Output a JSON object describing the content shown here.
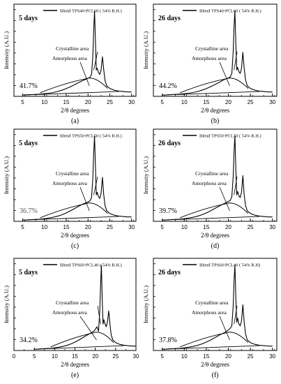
{
  "chart_data": [
    {
      "type": "line",
      "panel_label": "(a)",
      "legend": "Blend TPS40-PCL60 ( 54% R.H.)",
      "days": "5 days",
      "crystallinity": "41.7%",
      "ylabel": "Intensity (A.U.)",
      "xlabel": "2/θ degrees",
      "xlim": [
        3,
        31
      ],
      "xticks": [
        "5",
        "10",
        "15",
        "20",
        "25",
        "30"
      ],
      "legend_position": "top",
      "grid": false,
      "annotations": [
        "Crystalline area",
        "Amorphous area"
      ],
      "series": [
        {
          "x": [
            5,
            6,
            7,
            8,
            9,
            10,
            11,
            12,
            13,
            14,
            15,
            16,
            17,
            18,
            19,
            19.8,
            20.4,
            20.8,
            21.1,
            21.3,
            21.5,
            21.7,
            21.9,
            22.1,
            22.4,
            22.7,
            23,
            23.3,
            23.6,
            23.9,
            24.3,
            25,
            26,
            27,
            28,
            29,
            30
          ],
          "y": [
            0.015,
            0.018,
            0.02,
            0.022,
            0.025,
            0.03,
            0.036,
            0.044,
            0.055,
            0.07,
            0.088,
            0.11,
            0.135,
            0.16,
            0.185,
            0.2,
            0.215,
            0.25,
            0.45,
            0.75,
            0.97,
            0.62,
            0.3,
            0.32,
            0.27,
            0.25,
            0.3,
            0.45,
            0.3,
            0.18,
            0.12,
            0.09,
            0.07,
            0.06,
            0.055,
            0.05,
            0.05
          ]
        }
      ]
    },
    {
      "type": "line",
      "panel_label": "(b)",
      "legend": "Blend TPS40-PCL60 ( 54% R.H.)",
      "days": "26 days",
      "crystallinity": "44.2%",
      "ylabel": "Intensity (A.U.)",
      "xlabel": "2/θ degrees",
      "xlim": [
        3,
        31
      ],
      "xticks": [
        "5",
        "10",
        "15",
        "20",
        "25",
        "30"
      ],
      "legend_position": "top",
      "grid": false,
      "annotations": [
        "Crystalline area",
        "Amorphous area"
      ],
      "series": [
        {
          "x": [
            5,
            6,
            7,
            8,
            9,
            10,
            11,
            12,
            13,
            14,
            15,
            16,
            17,
            18,
            19,
            19.8,
            20.4,
            20.8,
            21.1,
            21.3,
            21.5,
            21.7,
            21.9,
            22.1,
            22.4,
            22.7,
            23,
            23.3,
            23.6,
            23.9,
            24.3,
            25,
            26,
            27,
            28,
            29,
            30
          ],
          "y": [
            0.015,
            0.017,
            0.02,
            0.022,
            0.025,
            0.03,
            0.036,
            0.044,
            0.055,
            0.07,
            0.088,
            0.11,
            0.135,
            0.16,
            0.19,
            0.205,
            0.22,
            0.26,
            0.5,
            0.8,
            0.97,
            0.6,
            0.3,
            0.33,
            0.28,
            0.26,
            0.32,
            0.5,
            0.32,
            0.19,
            0.12,
            0.09,
            0.07,
            0.06,
            0.055,
            0.05,
            0.05
          ]
        }
      ]
    },
    {
      "type": "line",
      "panel_label": "(c)",
      "legend": "Blend TPS50-PCL50 ( 54% R.H.)",
      "days": "5 days",
      "crystallinity": "36.7%",
      "ylabel": "Intensity (A.U.)",
      "xlabel": "2/θ degrees",
      "xlim": [
        3,
        31
      ],
      "xticks": [
        "5",
        "10",
        "15",
        "20",
        "25",
        "30"
      ],
      "legend_position": "top",
      "grid": false,
      "annotations": [
        "Crystalline area",
        "Amorphous area"
      ],
      "series": [
        {
          "x": [
            5,
            6,
            7,
            8,
            9,
            10,
            11,
            12,
            13,
            14,
            15,
            16,
            17,
            18,
            19,
            19.8,
            20.4,
            20.8,
            21.1,
            21.3,
            21.5,
            21.7,
            21.9,
            22.1,
            22.4,
            22.7,
            23,
            23.3,
            23.6,
            23.9,
            24.3,
            25,
            26,
            27,
            28,
            29,
            30
          ],
          "y": [
            0.015,
            0.017,
            0.02,
            0.022,
            0.025,
            0.03,
            0.037,
            0.046,
            0.058,
            0.075,
            0.095,
            0.12,
            0.148,
            0.175,
            0.2,
            0.215,
            0.23,
            0.27,
            0.48,
            0.78,
            0.97,
            0.62,
            0.3,
            0.33,
            0.28,
            0.26,
            0.32,
            0.5,
            0.3,
            0.18,
            0.12,
            0.09,
            0.07,
            0.06,
            0.055,
            0.05,
            0.05
          ]
        }
      ]
    },
    {
      "type": "line",
      "panel_label": "(d)",
      "legend": "Blend TPS50-PCL50 ( 54% R.H.)",
      "days": "26 days",
      "crystallinity": "39.7%",
      "ylabel": "Intensity (A.U.)",
      "xlabel": "2/θ degrees",
      "xlim": [
        3,
        31
      ],
      "xticks": [
        "5",
        "10",
        "15",
        "20",
        "25",
        "30"
      ],
      "legend_position": "top",
      "grid": false,
      "annotations": [
        "Crystalline area",
        "Amorphous area"
      ],
      "series": [
        {
          "x": [
            5,
            6,
            7,
            8,
            9,
            10,
            11,
            12,
            13,
            14,
            15,
            16,
            17,
            18,
            19,
            19.8,
            20.4,
            20.8,
            21.1,
            21.3,
            21.5,
            21.7,
            21.9,
            22.1,
            22.4,
            22.7,
            23,
            23.3,
            23.6,
            23.9,
            24.3,
            25,
            26,
            27,
            28,
            29,
            30
          ],
          "y": [
            0.015,
            0.017,
            0.02,
            0.022,
            0.025,
            0.03,
            0.037,
            0.046,
            0.058,
            0.075,
            0.095,
            0.12,
            0.148,
            0.175,
            0.2,
            0.22,
            0.235,
            0.28,
            0.5,
            0.8,
            0.97,
            0.6,
            0.3,
            0.34,
            0.29,
            0.27,
            0.33,
            0.52,
            0.3,
            0.18,
            0.12,
            0.09,
            0.07,
            0.06,
            0.055,
            0.05,
            0.05
          ]
        }
      ]
    },
    {
      "type": "line",
      "panel_label": "(e)",
      "legend": "Blend TPS60-PCL40 ( 54% R.H.)",
      "days": "5 days",
      "crystallinity": "34.2%",
      "ylabel": "Intensity (A.U.)",
      "xlabel": "2/θ degrees",
      "xlim": [
        0,
        30
      ],
      "xticks": [
        "0",
        "5",
        "10",
        "15",
        "20",
        "25",
        "30"
      ],
      "legend_position": "top",
      "grid": false,
      "annotations": [
        "Crystalline area",
        "Amorphous area"
      ],
      "series": [
        {
          "x": [
            5,
            6,
            7,
            8,
            9,
            10,
            11,
            12,
            13,
            14,
            15,
            16,
            17,
            18,
            19,
            19.8,
            20.4,
            20.8,
            21.1,
            21.3,
            21.5,
            21.7,
            21.9,
            22.1,
            22.4,
            22.7,
            23,
            23.3,
            23.6,
            23.9,
            24.3,
            25,
            26,
            27,
            28,
            29,
            30
          ],
          "y": [
            0.015,
            0.017,
            0.02,
            0.022,
            0.025,
            0.03,
            0.037,
            0.046,
            0.058,
            0.075,
            0.095,
            0.12,
            0.148,
            0.175,
            0.2,
            0.225,
            0.27,
            0.22,
            0.45,
            0.75,
            0.97,
            0.58,
            0.3,
            0.35,
            0.3,
            0.27,
            0.33,
            0.45,
            0.3,
            0.18,
            0.12,
            0.09,
            0.07,
            0.06,
            0.055,
            0.05,
            0.05
          ]
        }
      ]
    },
    {
      "type": "line",
      "panel_label": "(f)",
      "legend": "Blend TPS60-PCL40 ( 54% R.H)",
      "days": "26 days",
      "crystallinity": "37.8%",
      "ylabel": "Intensity (A.U.)",
      "xlabel": "2/θ degrees",
      "xlim": [
        3,
        31
      ],
      "xticks": [
        "5",
        "10",
        "15",
        "20",
        "25",
        "30"
      ],
      "legend_position": "top",
      "grid": false,
      "annotations": [
        "Crystalline area",
        "Amorphous area"
      ],
      "series": [
        {
          "x": [
            5,
            6,
            7,
            8,
            9,
            10,
            11,
            12,
            13,
            14,
            15,
            16,
            17,
            18,
            19,
            19.8,
            20.4,
            20.8,
            21.1,
            21.3,
            21.5,
            21.7,
            21.9,
            22.1,
            22.4,
            22.7,
            23,
            23.3,
            23.6,
            23.9,
            24.3,
            25,
            26,
            27,
            28,
            29,
            30
          ],
          "y": [
            0.015,
            0.017,
            0.02,
            0.022,
            0.025,
            0.03,
            0.037,
            0.046,
            0.058,
            0.075,
            0.095,
            0.12,
            0.148,
            0.175,
            0.2,
            0.225,
            0.25,
            0.28,
            0.5,
            0.8,
            0.97,
            0.6,
            0.32,
            0.37,
            0.3,
            0.28,
            0.34,
            0.52,
            0.32,
            0.19,
            0.12,
            0.09,
            0.07,
            0.06,
            0.055,
            0.05,
            0.05
          ]
        }
      ]
    }
  ]
}
